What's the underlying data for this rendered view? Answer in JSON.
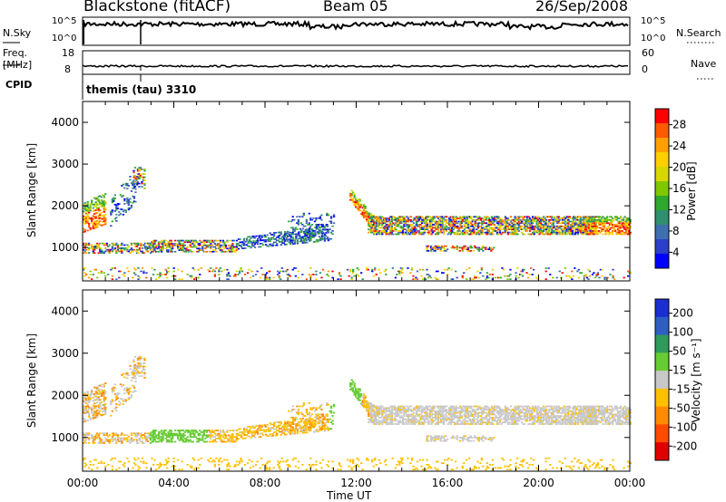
{
  "header": {
    "title": "Blackstone (fitACF)",
    "beam": "Beam 05",
    "date": "26/Sep/2008"
  },
  "panels": {
    "nsky_label": "N.Sky",
    "nsky_ticks": [
      "10^5",
      "10^0"
    ],
    "nsearch_label": "N.Search",
    "nsearch_ticks": [
      "10^5",
      "10^0"
    ],
    "freq_label": "Freq.",
    "freq_unit": "[MHz]",
    "freq_ticks": [
      "18",
      "8"
    ],
    "nave_label": "Nave",
    "nave_ticks": [
      "60",
      "0"
    ],
    "cpid_label": "CPID",
    "cpid_value": "themis (tau) 3310"
  },
  "chart_data": [
    {
      "type": "heatmap",
      "name": "power",
      "ylabel": "Slant Range [km]",
      "xlabel": "",
      "yticks": [
        "4000",
        "3000",
        "2000",
        "1000"
      ],
      "xlim": [
        0,
        24
      ],
      "ylim": [
        200,
        4500
      ],
      "colorbar": {
        "label": "Power [dB]",
        "ticks": [
          "28",
          "24",
          "20",
          "16",
          "12",
          "8",
          "4"
        ],
        "colors": [
          "#ff0000",
          "#ff5a00",
          "#ffa000",
          "#ffd000",
          "#d8d800",
          "#7fc800",
          "#2ea82e",
          "#2f8f6f",
          "#3f6fb0",
          "#2b3fc8",
          "#0000ff"
        ]
      }
    },
    {
      "type": "heatmap",
      "name": "velocity",
      "ylabel": "Slant Range [km]",
      "xlabel": "Time UT",
      "yticks": [
        "4000",
        "3000",
        "2000",
        "1000"
      ],
      "xticks": [
        "00:00",
        "04:00",
        "08:00",
        "12:00",
        "16:00",
        "20:00",
        "00:00"
      ],
      "xlim": [
        0,
        24
      ],
      "ylim": [
        200,
        4500
      ],
      "colorbar": {
        "label": "Velocity [m s⁻¹]",
        "ticks": [
          "200",
          "100",
          "50",
          "15",
          "-15",
          "-50",
          "-100",
          "-200"
        ],
        "colors": [
          "#1a2fd0",
          "#2e5fc0",
          "#2f9a5a",
          "#66cc33",
          "#c8c8c8",
          "#ffc000",
          "#ff8c00",
          "#ff4a00",
          "#e00000"
        ]
      }
    }
  ]
}
